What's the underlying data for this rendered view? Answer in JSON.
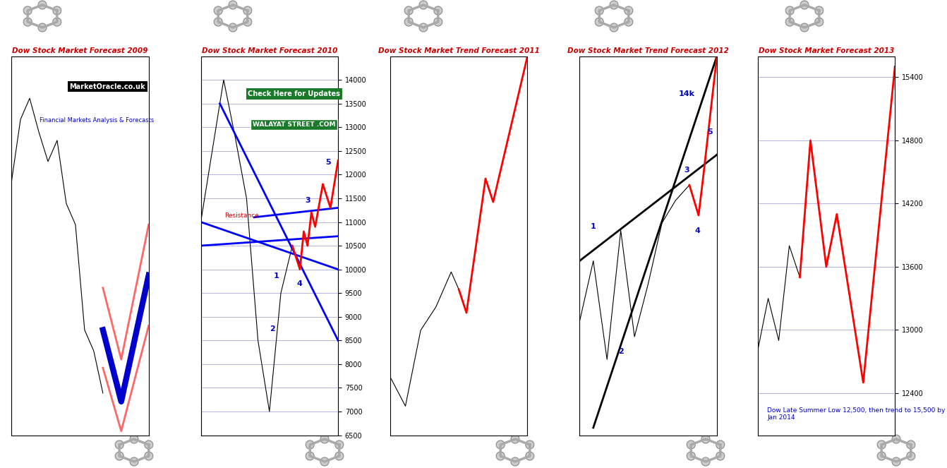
{
  "chart_data": [
    {
      "type": "line",
      "title": "Dow Stock Market Forecast 2009",
      "annotations": [
        "MarketOracle.co.uk",
        "Financial Markets Analysis & Forecasts"
      ],
      "xlim": [
        0,
        30
      ],
      "ylim": [
        6000,
        15000
      ],
      "tick_labels": false,
      "series": [
        {
          "color": "#000000",
          "x": [
            0,
            2,
            4,
            6,
            8,
            10,
            12,
            14,
            16,
            18,
            20
          ],
          "values": [
            12000,
            13500,
            14000,
            13200,
            12500,
            13000,
            11500,
            11000,
            8500,
            8000,
            7000
          ]
        },
        {
          "color": "#0000cc",
          "x": [
            20,
            24,
            30
          ],
          "values": [
            8500,
            6800,
            9800
          ]
        },
        {
          "color": "#ff6666",
          "x": [
            20,
            24,
            30
          ],
          "values": [
            9500,
            7800,
            11000
          ]
        },
        {
          "color": "#ff6666",
          "x": [
            20,
            24,
            30
          ],
          "values": [
            7600,
            6100,
            8600
          ]
        }
      ]
    },
    {
      "type": "line",
      "title": "Dow Stock Market Forecast 2010",
      "annotations": [
        "Check Here for Updates",
        "WALAYAT STREET .COM",
        "Resistance",
        "1",
        "2",
        "3",
        "4",
        "5"
      ],
      "xlim": [
        0,
        36
      ],
      "ylim": [
        6500,
        14500
      ],
      "yticks": [
        6500,
        7000,
        7500,
        8000,
        8500,
        9000,
        9500,
        10000,
        10500,
        11000,
        11500,
        12000,
        12500,
        13000,
        13500,
        14000
      ],
      "tick_labels": "y",
      "grid": true,
      "series": [
        {
          "color": "#000000",
          "x": [
            0,
            3,
            6,
            9,
            12,
            15,
            18,
            21,
            24
          ],
          "values": [
            11000,
            12500,
            14000,
            12800,
            11500,
            8500,
            7000,
            9500,
            10500
          ]
        },
        {
          "color": "#0000ff",
          "x": [
            0,
            36
          ],
          "values": [
            11000,
            10000
          ]
        },
        {
          "color": "#0000ff",
          "x": [
            0,
            36
          ],
          "values": [
            10500,
            10700
          ]
        },
        {
          "color": "#0000ff",
          "x": [
            14,
            36
          ],
          "values": [
            11100,
            11300
          ]
        },
        {
          "color": "#0000ff",
          "x": [
            5,
            36
          ],
          "values": [
            13500,
            8500
          ]
        },
        {
          "color": "#ff0000",
          "x": [
            24,
            26,
            27,
            28,
            29,
            30,
            32,
            34,
            36
          ],
          "values": [
            10500,
            10000,
            10800,
            10500,
            11200,
            10900,
            11800,
            11300,
            12300
          ]
        }
      ]
    },
    {
      "type": "line",
      "title": "Dow Stock Market Trend Forecast 2011",
      "xlim": [
        0,
        36
      ],
      "ylim": [
        8000,
        14500
      ],
      "tick_labels": false,
      "series": [
        {
          "color": "#000000",
          "x": [
            0,
            4,
            8,
            12,
            16,
            18
          ],
          "values": [
            9000,
            8500,
            9800,
            10200,
            10800,
            10500
          ]
        },
        {
          "color": "#ff0000",
          "x": [
            18,
            20,
            25,
            27,
            36
          ],
          "values": [
            10500,
            10100,
            12400,
            12000,
            14500
          ]
        }
      ]
    },
    {
      "type": "line",
      "title": "Dow Stock Market Trend Forecast 2012",
      "annotations": [
        "14k",
        "1",
        "2",
        "3",
        "4",
        "5"
      ],
      "xlim": [
        0,
        30
      ],
      "ylim": [
        9500,
        14500
      ],
      "tick_labels": false,
      "series": [
        {
          "color": "#000000",
          "x": [
            0,
            3,
            6,
            9,
            12,
            15,
            18,
            21,
            24
          ],
          "values": [
            11000,
            11800,
            10500,
            12200,
            10800,
            11500,
            12300,
            12600,
            12800
          ]
        },
        {
          "color": "#000000",
          "x": [
            3,
            30
          ],
          "values": [
            9600,
            14500
          ]
        },
        {
          "color": "#000000",
          "x": [
            0,
            30
          ],
          "values": [
            11800,
            13200
          ]
        },
        {
          "color": "#ff0000",
          "x": [
            24,
            26,
            27,
            30
          ],
          "values": [
            12800,
            12400,
            12900,
            14500
          ]
        }
      ]
    },
    {
      "type": "line",
      "title": "Dow Stock Market Forecast 2013",
      "annotations": [
        "Dow Late Summer Low 12,500, then trend to 15,500 by Jan 2014"
      ],
      "xlim": [
        0,
        26
      ],
      "ylim": [
        12000,
        15600
      ],
      "yticks": [
        12400,
        13000,
        13600,
        14200,
        14800,
        15400
      ],
      "tick_labels": "y",
      "grid": true,
      "series": [
        {
          "color": "#000000",
          "x": [
            0,
            2,
            4,
            6,
            8
          ],
          "values": [
            12800,
            13300,
            12900,
            13800,
            13500
          ]
        },
        {
          "color": "#ff0000",
          "x": [
            8,
            10,
            13,
            15,
            20,
            26
          ],
          "values": [
            13500,
            14800,
            13600,
            14100,
            12500,
            15500
          ]
        }
      ]
    }
  ]
}
